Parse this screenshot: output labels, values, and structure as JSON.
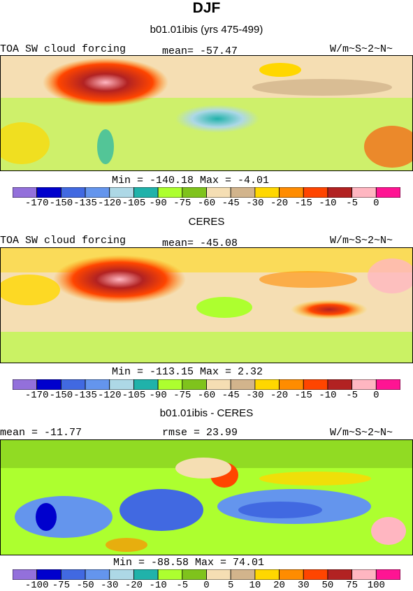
{
  "title": "DJF",
  "panels": [
    {
      "subtitle": "b01.01ibis (yrs 475-499)",
      "left_label": "TOA SW cloud forcing",
      "center_label": "mean= -57.47",
      "right_label": "W/m~S~2~N~",
      "minmax": "Min = -140.18  Max =   -4.01",
      "colorbar": "absolute"
    },
    {
      "subtitle": "CERES",
      "left_label": "TOA SW cloud forcing",
      "center_label": "mean= -45.08",
      "right_label": "W/m~S~2~N~",
      "minmax": "Min = -113.15  Max =   2.32",
      "colorbar": "absolute"
    },
    {
      "subtitle": "b01.01ibis - CERES",
      "left_label": "mean = -11.77",
      "center_label": "rmse =  23.99",
      "right_label": "W/m~S~2~N~",
      "minmax": "Min = -88.58  Max =  74.01",
      "colorbar": "difference"
    }
  ],
  "colorbars": {
    "absolute": {
      "colors": [
        "#9370DB",
        "#0000CD",
        "#4169E1",
        "#6495ED",
        "#ADD8E6",
        "#20B2AA",
        "#ADFF2F",
        "#7FC31C",
        "#F5DEB3",
        "#D2B48C",
        "#FFD700",
        "#FF8C00",
        "#FF4500",
        "#B22222",
        "#FFB6C1",
        "#FF1493"
      ],
      "tick_labels": [
        "-170",
        "-150",
        "-135",
        "-120",
        "-105",
        "-90",
        "-75",
        "-60",
        "-45",
        "-30",
        "-20",
        "-15",
        "-10",
        "-5",
        "0"
      ]
    },
    "difference": {
      "colors": [
        "#9370DB",
        "#0000CD",
        "#4169E1",
        "#6495ED",
        "#ADD8E6",
        "#20B2AA",
        "#ADFF2F",
        "#7FC31C",
        "#F5DEB3",
        "#D2B48C",
        "#FFD700",
        "#FF8C00",
        "#FF4500",
        "#B22222",
        "#FFB6C1",
        "#FF1493"
      ],
      "tick_labels": [
        "-100",
        "-75",
        "-50",
        "-30",
        "-20",
        "-10",
        "-5",
        "0",
        "5",
        "10",
        "20",
        "30",
        "50",
        "75",
        "100"
      ]
    }
  },
  "chart_data": [
    {
      "type": "heatmap",
      "title": "b01.01ibis (yrs 475-499)",
      "variable": "TOA SW cloud forcing",
      "units": "W/m~S~2~N~",
      "mean": -57.47,
      "min": -140.18,
      "max": -4.01,
      "contour_levels": [
        -170,
        -150,
        -135,
        -120,
        -105,
        -90,
        -75,
        -60,
        -45,
        -30,
        -20,
        -15,
        -10,
        -5,
        0
      ]
    },
    {
      "type": "heatmap",
      "title": "CERES",
      "variable": "TOA SW cloud forcing",
      "units": "W/m~S~2~N~",
      "mean": -45.08,
      "min": -113.15,
      "max": 2.32,
      "contour_levels": [
        -170,
        -150,
        -135,
        -120,
        -105,
        -90,
        -75,
        -60,
        -45,
        -30,
        -20,
        -15,
        -10,
        -5,
        0
      ]
    },
    {
      "type": "heatmap",
      "title": "b01.01ibis - CERES",
      "units": "W/m~S~2~N~",
      "mean": -11.77,
      "rmse": 23.99,
      "min": -88.58,
      "max": 74.01,
      "contour_levels": [
        -100,
        -75,
        -50,
        -30,
        -20,
        -10,
        -5,
        0,
        5,
        10,
        20,
        30,
        50,
        75,
        100
      ]
    }
  ]
}
